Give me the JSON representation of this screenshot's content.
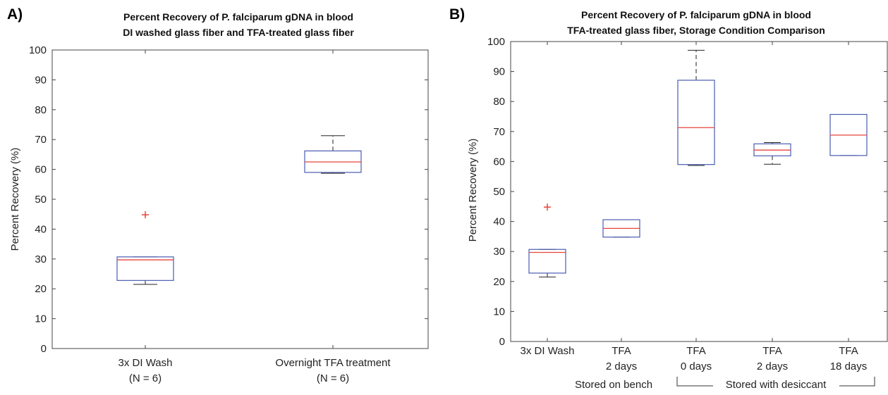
{
  "chart_data": [
    {
      "type": "box",
      "panel_label": "A)",
      "title": [
        "Percent Recovery of P. falciparum gDNA in blood",
        "DI washed glass fiber and TFA-treated glass fiber"
      ],
      "ylabel": "Percent Recovery (%)",
      "ylim": [
        0,
        100
      ],
      "yticks": [
        "0",
        "10",
        "20",
        "30",
        "40",
        "50",
        "60",
        "70",
        "80",
        "90",
        "100"
      ],
      "categories": [
        [
          "3x DI Wash",
          "(N = 6)"
        ],
        [
          "Overnight TFA treatment",
          "(N = 6)"
        ]
      ],
      "boxes": [
        {
          "whisker_low": 21.5,
          "q1": 22.8,
          "median": 29.7,
          "q3": 30.7,
          "whisker_high": 30.7,
          "outliers": [
            44.8
          ]
        },
        {
          "whisker_low": 58.7,
          "q1": 59.0,
          "median": 62.5,
          "q3": 66.2,
          "whisker_high": 71.3,
          "outliers": []
        }
      ],
      "colors": {
        "box": "#4a5cb0",
        "median": "#e8453c",
        "whisker": "#222222",
        "outlier": "#e8453c"
      }
    },
    {
      "type": "box",
      "panel_label": "B)",
      "title": [
        "Percent Recovery of P. falciparum gDNA in blood",
        "TFA-treated glass fiber, Storage Condition Comparison"
      ],
      "ylabel": "Percent Recovery (%)",
      "ylim": [
        0,
        100
      ],
      "yticks": [
        "0",
        "10",
        "20",
        "30",
        "40",
        "50",
        "60",
        "70",
        "80",
        "90",
        "100"
      ],
      "categories": [
        [
          "3x DI Wash"
        ],
        [
          "TFA",
          "2 days"
        ],
        [
          "TFA",
          "0 days"
        ],
        [
          "TFA",
          "2 days"
        ],
        [
          "TFA",
          "18 days"
        ]
      ],
      "boxes": [
        {
          "whisker_low": 21.5,
          "q1": 22.8,
          "median": 29.7,
          "q3": 30.7,
          "whisker_high": 30.7,
          "outliers": [
            44.8
          ]
        },
        {
          "whisker_low": 34.8,
          "q1": 34.8,
          "median": 37.7,
          "q3": 40.6,
          "whisker_high": 40.6,
          "outliers": []
        },
        {
          "whisker_low": 58.7,
          "q1": 59.0,
          "median": 71.3,
          "q3": 87.1,
          "whisker_high": 97.1,
          "outliers": []
        },
        {
          "whisker_low": 59.1,
          "q1": 61.9,
          "median": 63.8,
          "q3": 65.9,
          "whisker_high": 66.3,
          "outliers": []
        },
        {
          "whisker_low": 62.0,
          "q1": 62.0,
          "median": 68.8,
          "q3": 75.7,
          "whisker_high": 75.7,
          "outliers": []
        }
      ],
      "group_labels": [
        {
          "text": "Stored on bench",
          "categories": [
            1
          ]
        },
        {
          "text": "Stored with desiccant",
          "categories": [
            2,
            3,
            4
          ]
        }
      ],
      "colors": {
        "box": "#4a5cb0",
        "median": "#e8453c",
        "whisker": "#222222",
        "outlier": "#e8453c"
      }
    }
  ]
}
